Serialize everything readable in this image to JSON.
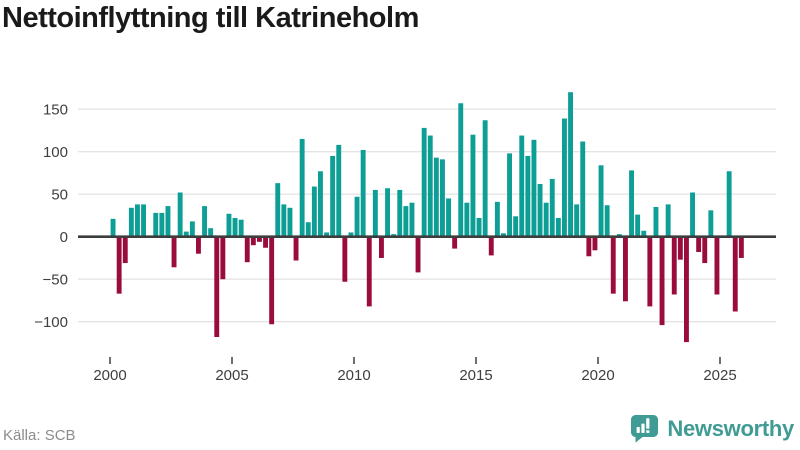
{
  "title": "Nettoinflyttning till Katrineholm",
  "source": "Källa: SCB",
  "branding": {
    "name": "Newsworthy"
  },
  "colors": {
    "positive": "#0d9e96",
    "negative": "#9a0c3c",
    "grid": "#e4e4e4",
    "zero_line": "#3d3d3d",
    "axis_text": "#3f3f3f",
    "title_text": "#1a1a1a",
    "source_text": "#8c8c8c",
    "brand_teal": "#3f9b94"
  },
  "chart_data": {
    "type": "bar",
    "title": "Nettoinflyttning till Katrineholm",
    "xlabel": "",
    "ylabel": "",
    "ylim": [
      -130,
      175
    ],
    "grid": "horizontal",
    "legend": "none",
    "y_ticks": [
      {
        "v": 150,
        "label": "150"
      },
      {
        "v": 100,
        "label": "100"
      },
      {
        "v": 50,
        "label": "50"
      },
      {
        "v": 0,
        "label": "0"
      },
      {
        "v": -50,
        "label": "−50"
      },
      {
        "v": -100,
        "label": "−100"
      }
    ],
    "x_ticks": [
      "2000",
      "2005",
      "2010",
      "2015",
      "2020",
      "2025"
    ],
    "x": [
      "2000Q1",
      "2000Q2",
      "2000Q3",
      "2000Q4",
      "2001Q1",
      "2001Q2",
      "2001Q3",
      "2001Q4",
      "2002Q1",
      "2002Q2",
      "2002Q3",
      "2002Q4",
      "2003Q1",
      "2003Q2",
      "2003Q3",
      "2003Q4",
      "2004Q1",
      "2004Q2",
      "2004Q3",
      "2004Q4",
      "2005Q1",
      "2005Q2",
      "2005Q3",
      "2005Q4",
      "2006Q1",
      "2006Q2",
      "2006Q3",
      "2006Q4",
      "2007Q1",
      "2007Q2",
      "2007Q3",
      "2007Q4",
      "2008Q1",
      "2008Q2",
      "2008Q3",
      "2008Q4",
      "2009Q1",
      "2009Q2",
      "2009Q3",
      "2009Q4",
      "2010Q1",
      "2010Q2",
      "2010Q3",
      "2010Q4",
      "2011Q1",
      "2011Q2",
      "2011Q3",
      "2011Q4",
      "2012Q1",
      "2012Q2",
      "2012Q3",
      "2012Q4",
      "2013Q1",
      "2013Q2",
      "2013Q3",
      "2013Q4",
      "2014Q1",
      "2014Q2",
      "2014Q3",
      "2014Q4",
      "2015Q1",
      "2015Q2",
      "2015Q3",
      "2015Q4",
      "2016Q1",
      "2016Q2",
      "2016Q3",
      "2016Q4",
      "2017Q1",
      "2017Q2",
      "2017Q3",
      "2017Q4",
      "2018Q1",
      "2018Q2",
      "2018Q3",
      "2018Q4",
      "2019Q1",
      "2019Q2",
      "2019Q3",
      "2019Q4",
      "2020Q1",
      "2020Q2",
      "2020Q3",
      "2020Q4",
      "2021Q1",
      "2021Q2",
      "2021Q3",
      "2021Q4",
      "2022Q1",
      "2022Q2",
      "2022Q3",
      "2022Q4",
      "2023Q1",
      "2023Q2",
      "2023Q3",
      "2023Q4",
      "2024Q1",
      "2024Q2",
      "2024Q3",
      "2024Q4",
      "2025Q1",
      "2025Q2",
      "2025Q3",
      "2025Q4"
    ],
    "values": [
      21,
      -67,
      -31,
      34,
      38,
      38,
      0,
      28,
      28,
      36,
      -36,
      52,
      6,
      18,
      -20,
      36,
      10,
      -118,
      -50,
      27,
      22,
      20,
      -30,
      -10,
      -6,
      -13,
      -103,
      63,
      38,
      34,
      -28,
      115,
      17,
      59,
      77,
      5,
      95,
      108,
      -53,
      5,
      47,
      102,
      -82,
      55,
      -25,
      57,
      3,
      55,
      36,
      40,
      -42,
      128,
      119,
      93,
      91,
      45,
      -14,
      157,
      40,
      120,
      22,
      137,
      -22,
      41,
      4,
      98,
      24,
      119,
      95,
      114,
      62,
      40,
      68,
      22,
      139,
      170,
      38,
      112,
      -23,
      -16,
      84,
      37,
      -67,
      3,
      -76,
      78,
      26,
      7,
      -82,
      35,
      -104,
      38,
      -68,
      -27,
      -124,
      52,
      -18,
      -31,
      31,
      -68,
      0,
      77,
      -88,
      -25
    ]
  }
}
